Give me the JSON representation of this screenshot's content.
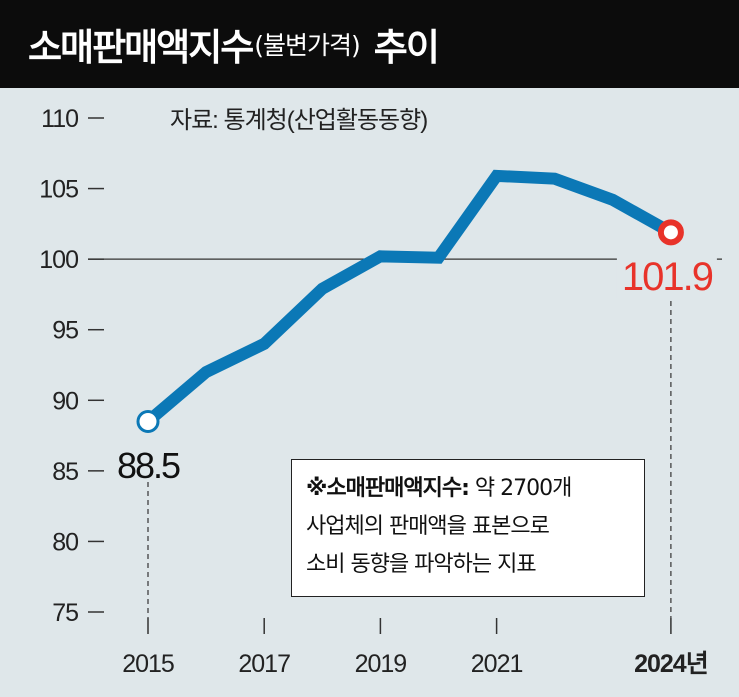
{
  "title": {
    "main": "소매판매액지수",
    "sub": "(불변가격)",
    "suffix": "추이"
  },
  "source": "자료: 통계청(산업활동동향)",
  "note": {
    "label": "※소매판매액지수:",
    "line1": "약 2700개",
    "line2": "사업체의 판매액을 표본으로",
    "line3": "소비 동향을 파악하는 지표"
  },
  "colors": {
    "line": "#0b78b6",
    "highlight": "#e8332a",
    "background": "#dfe7ea"
  },
  "chart_data": {
    "type": "line",
    "title": "소매판매액지수(불변가격) 추이",
    "x": [
      2015,
      2016,
      2017,
      2018,
      2019,
      2020,
      2021,
      2022,
      2023,
      2024
    ],
    "values": [
      88.5,
      92.0,
      94.0,
      97.9,
      100.2,
      100.1,
      105.9,
      105.7,
      104.2,
      101.9
    ],
    "ylim": [
      75,
      110
    ],
    "yticks": [
      75,
      80,
      85,
      90,
      95,
      100,
      105,
      110
    ],
    "ytick_labels": [
      "75",
      "80",
      "85",
      "90",
      "95",
      "100",
      "105",
      "110"
    ],
    "xticks": [
      2015,
      2017,
      2019,
      2021,
      2024
    ],
    "xtick_labels": [
      "2015",
      "2017",
      "2019",
      "2021",
      "2024년"
    ],
    "reference_line": 100,
    "annotations": [
      {
        "x": 2015,
        "label": "88.5"
      },
      {
        "x": 2024,
        "label": "101.9"
      }
    ]
  }
}
